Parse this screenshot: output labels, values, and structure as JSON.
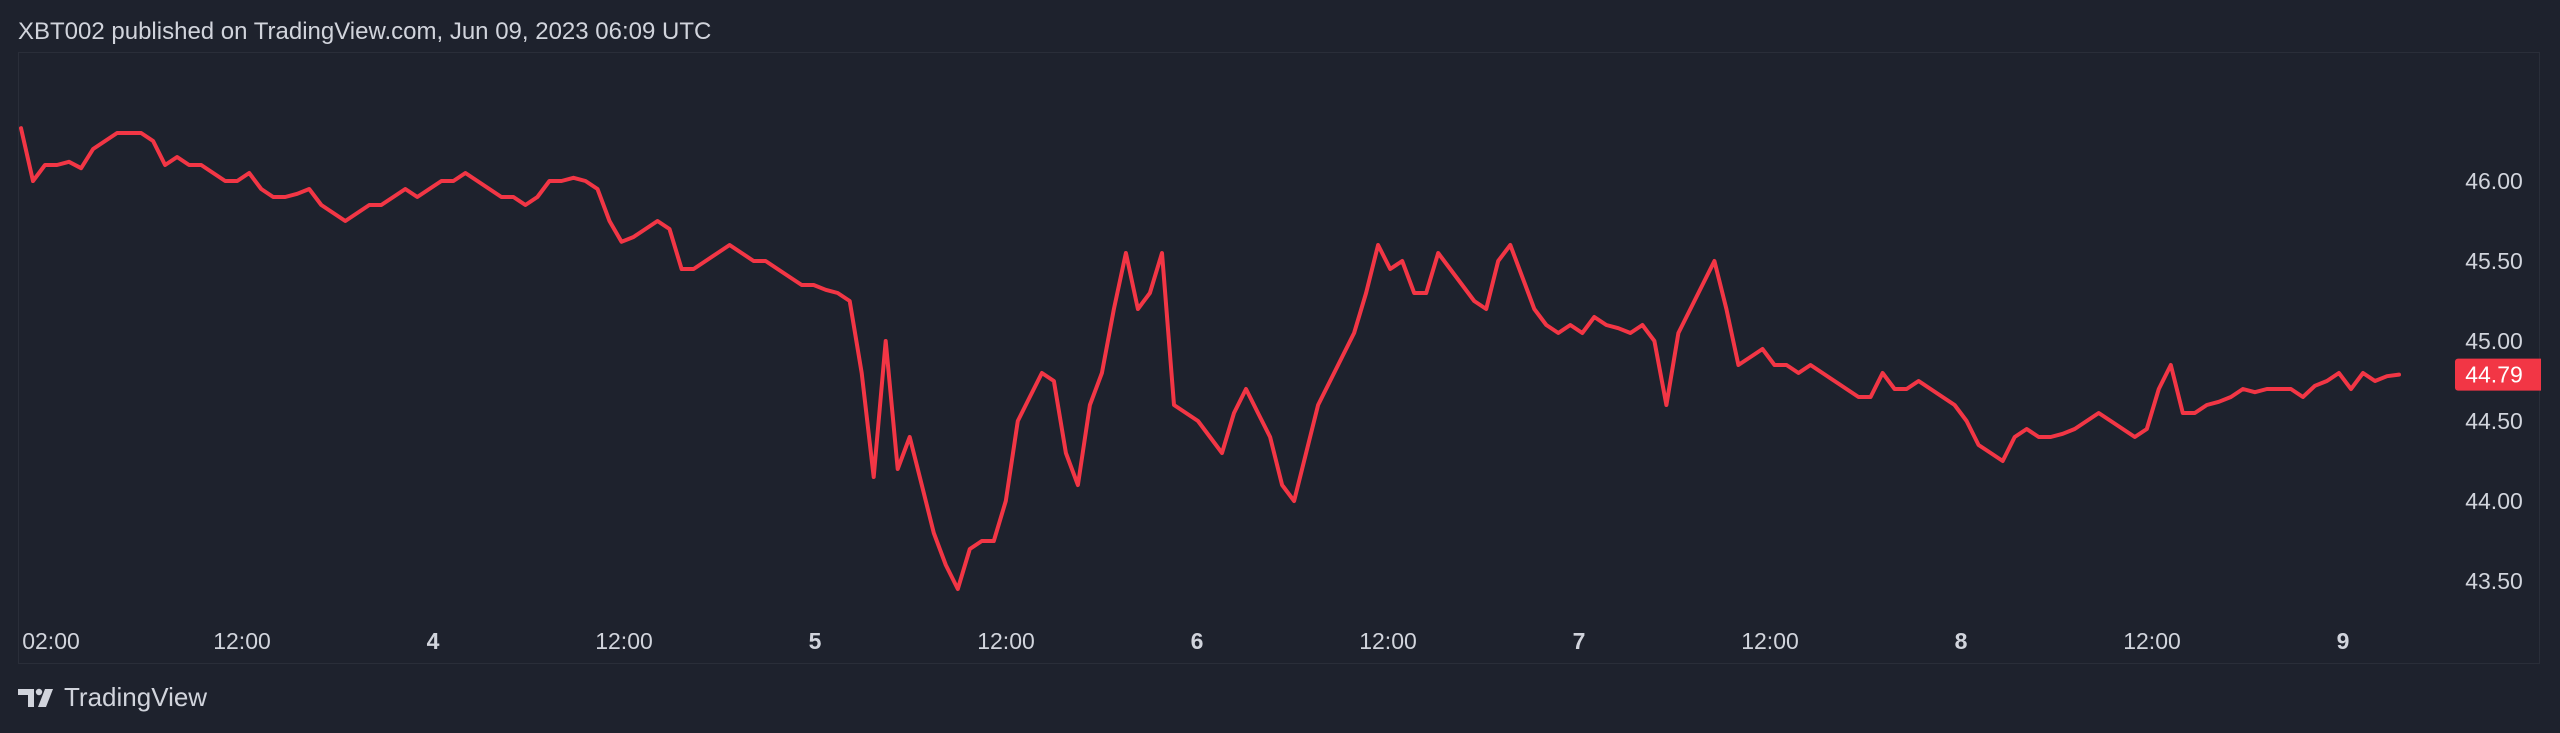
{
  "header": {
    "publisher": "XBT002 published on TradingView.com, Jun 09, 2023 06:09 UTC"
  },
  "footer": {
    "brand": "TradingView"
  },
  "colors": {
    "background": "#1e222d",
    "line": "#f23645",
    "text": "#d1d4dc",
    "price_label_bg": "#f23645"
  },
  "chart_data": {
    "type": "line",
    "x_tick_labels": [
      "02:00",
      "12:00",
      "4",
      "12:00",
      "5",
      "12:00",
      "6",
      "12:00",
      "7",
      "12:00",
      "8",
      "12:00",
      "9"
    ],
    "y_ticks": [
      "46.00",
      "45.50",
      "45.00",
      "44.50",
      "44.00",
      "43.50"
    ],
    "ylim": [
      43.3,
      46.55
    ],
    "last_price": "44.79",
    "series": [
      {
        "values": [
          46.33,
          46.0,
          46.1,
          46.1,
          46.12,
          46.08,
          46.2,
          46.25,
          46.3,
          46.3,
          46.3,
          46.25,
          46.1,
          46.15,
          46.1,
          46.1,
          46.05,
          46.0,
          46.0,
          46.05,
          45.95,
          45.9,
          45.9,
          45.92,
          45.95,
          45.85,
          45.8,
          45.75,
          45.8,
          45.85,
          45.85,
          45.9,
          45.95,
          45.9,
          45.95,
          46.0,
          46.0,
          46.05,
          46.0,
          45.95,
          45.9,
          45.9,
          45.85,
          45.9,
          46.0,
          46.0,
          46.02,
          46.0,
          45.95,
          45.75,
          45.62,
          45.65,
          45.7,
          45.75,
          45.7,
          45.45,
          45.45,
          45.5,
          45.55,
          45.6,
          45.55,
          45.5,
          45.5,
          45.45,
          45.4,
          45.35,
          45.35,
          45.32,
          45.3,
          45.25,
          44.8,
          44.15,
          45.0,
          44.2,
          44.4,
          44.1,
          43.8,
          43.6,
          43.45,
          43.7,
          43.75,
          43.75,
          44.0,
          44.5,
          44.65,
          44.8,
          44.75,
          44.3,
          44.1,
          44.6,
          44.8,
          45.2,
          45.55,
          45.2,
          45.3,
          45.55,
          44.6,
          44.55,
          44.5,
          44.4,
          44.3,
          44.55,
          44.7,
          44.55,
          44.4,
          44.1,
          44.0,
          44.3,
          44.6,
          44.75,
          44.9,
          45.05,
          45.3,
          45.6,
          45.45,
          45.5,
          45.3,
          45.3,
          45.55,
          45.45,
          45.35,
          45.25,
          45.2,
          45.5,
          45.6,
          45.4,
          45.2,
          45.1,
          45.05,
          45.1,
          45.05,
          45.15,
          45.1,
          45.08,
          45.05,
          45.1,
          45.0,
          44.6,
          45.05,
          45.2,
          45.35,
          45.5,
          45.2,
          44.85,
          44.9,
          44.95,
          44.85,
          44.85,
          44.8,
          44.85,
          44.8,
          44.75,
          44.7,
          44.65,
          44.65,
          44.8,
          44.7,
          44.7,
          44.75,
          44.7,
          44.65,
          44.6,
          44.5,
          44.35,
          44.3,
          44.25,
          44.4,
          44.45,
          44.4,
          44.4,
          44.42,
          44.45,
          44.5,
          44.55,
          44.5,
          44.45,
          44.4,
          44.45,
          44.7,
          44.85,
          44.55,
          44.55,
          44.6,
          44.62,
          44.65,
          44.7,
          44.68,
          44.7,
          44.7,
          44.7,
          44.65,
          44.72,
          44.75,
          44.8,
          44.7,
          44.8,
          44.75,
          44.78,
          44.79
        ]
      }
    ]
  }
}
